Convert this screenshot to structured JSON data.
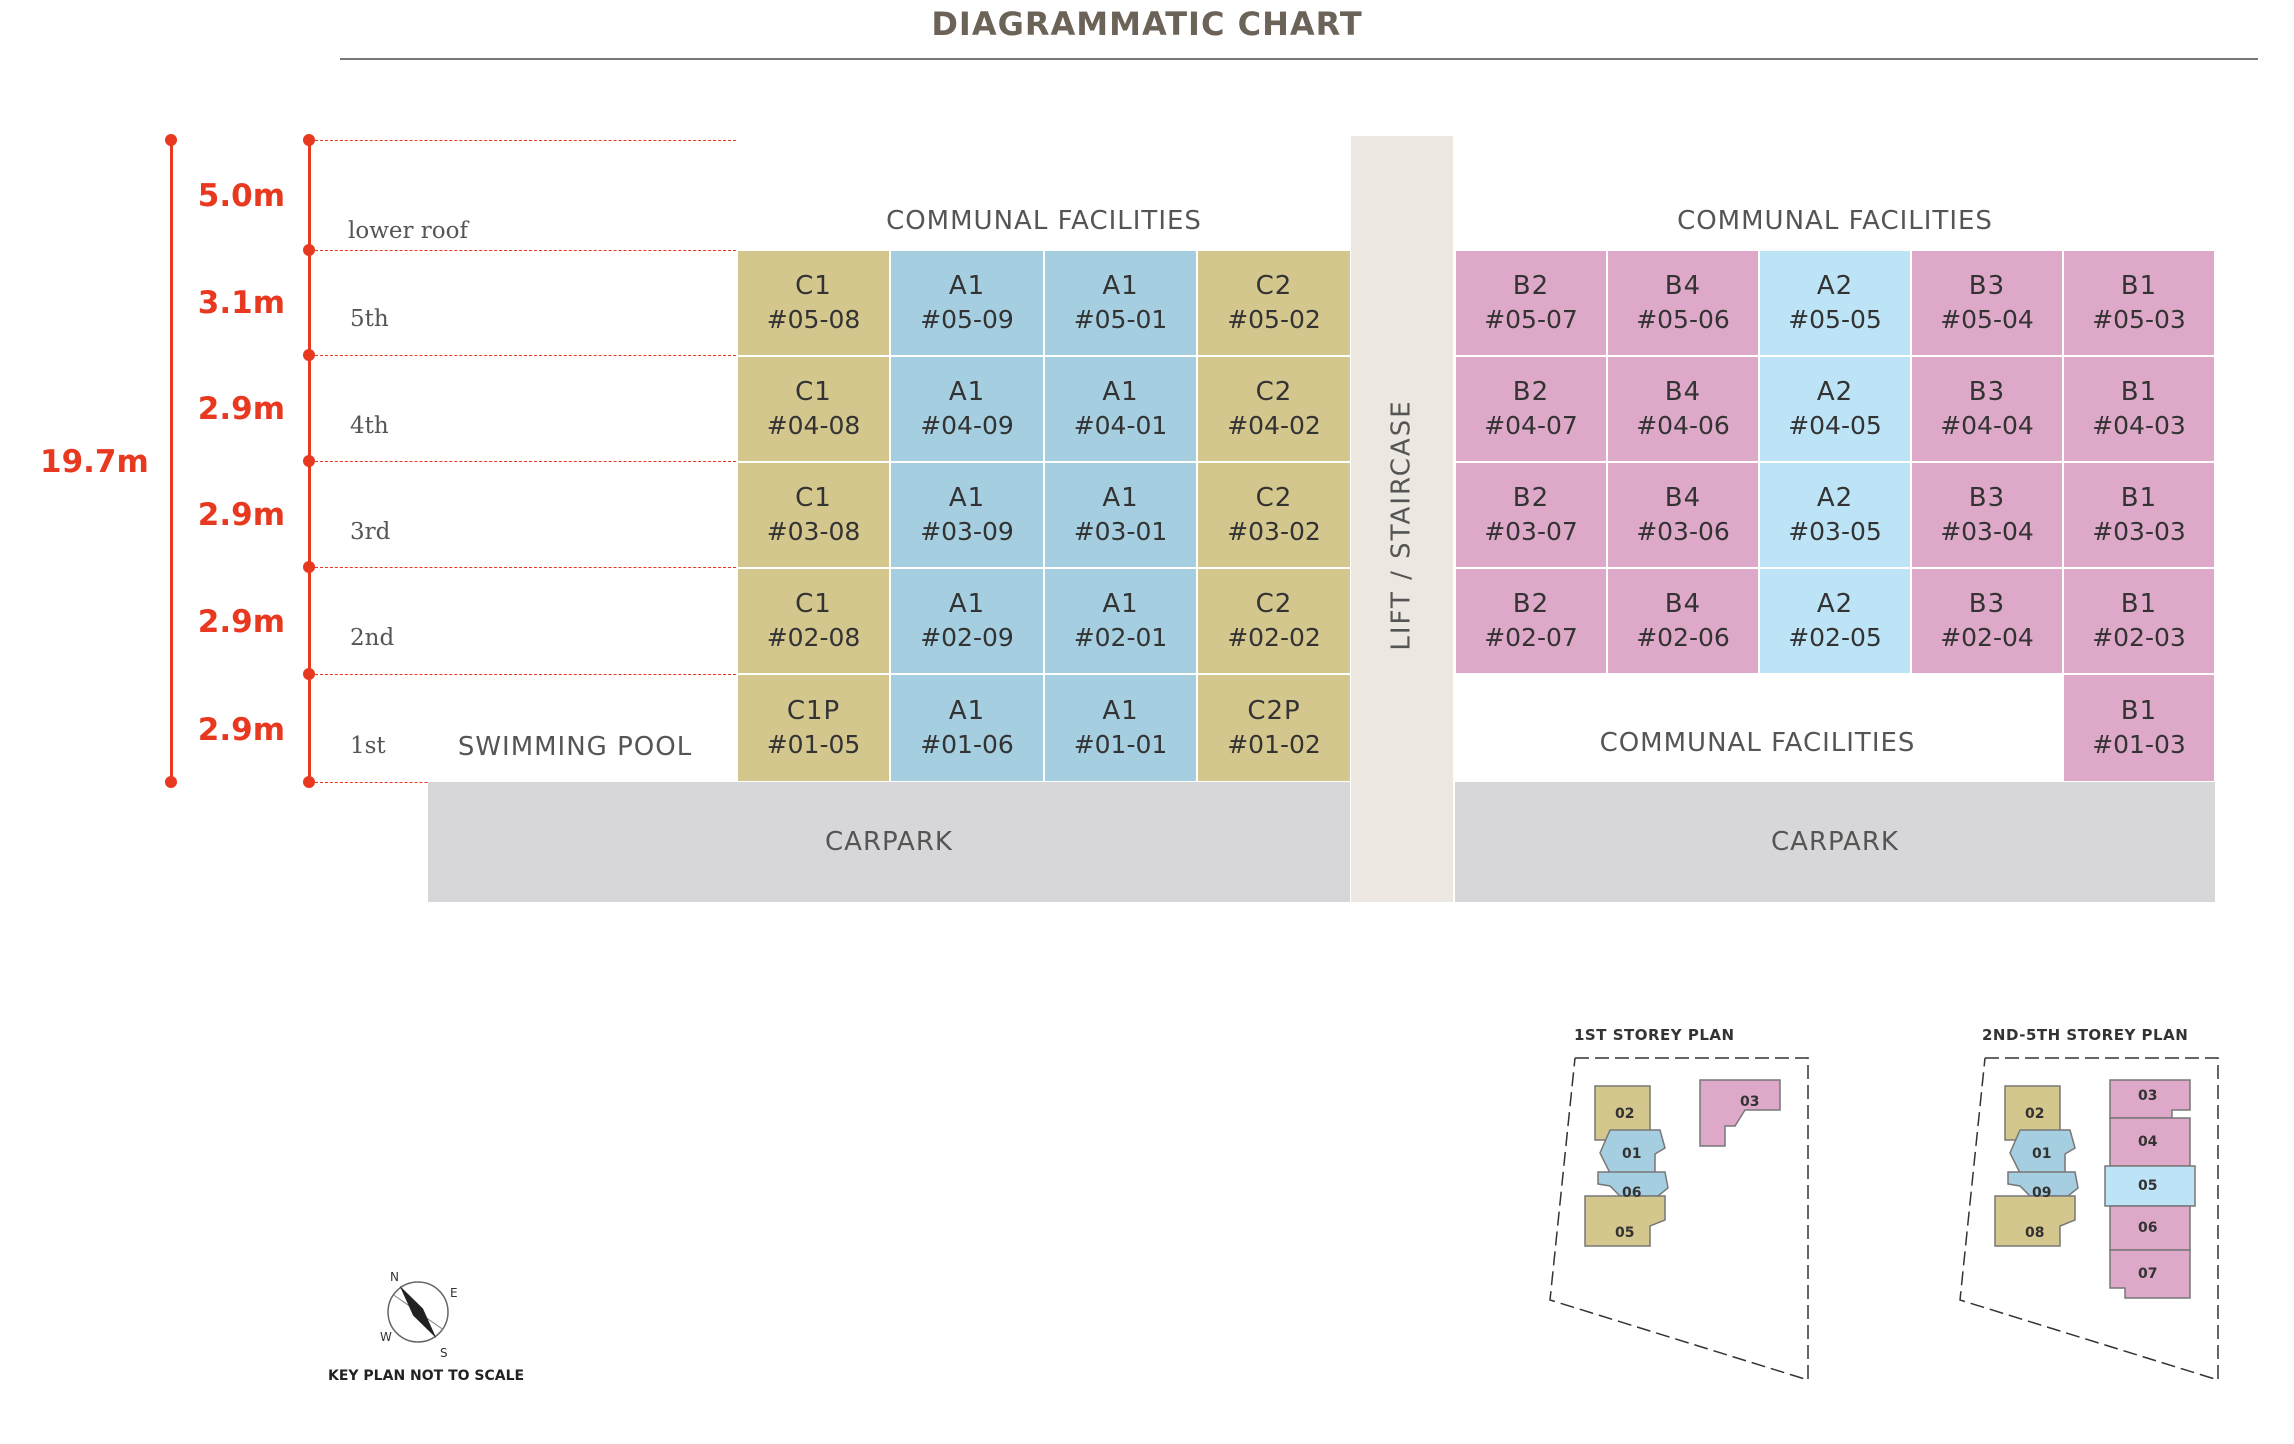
{
  "title": "DIAGRAMMATIC CHART",
  "dimensions": {
    "total": "19.7m",
    "segments": [
      "5.0m",
      "3.1m",
      "2.9m",
      "2.9m",
      "2.9m",
      "2.9m"
    ]
  },
  "floors": [
    "lower roof",
    "5th",
    "4th",
    "3rd",
    "2nd",
    "1st"
  ],
  "labels": {
    "communal_left": "COMMUNAL FACILITIES",
    "communal_right": "COMMUNAL FACILITIES",
    "communal_first": "COMMUNAL FACILITIES",
    "swimming_pool": "SWIMMING POOL",
    "carpark_left": "CARPARK",
    "carpark_right": "CARPARK",
    "lift": "LIFT / STAIRCASE"
  },
  "colors": {
    "C": "#d4c78e",
    "A1": "#a5cfe0",
    "A2": "#bde4f6",
    "B": "#dea9c8",
    "accent": "#e8381f"
  },
  "units": {
    "row5": [
      {
        "type": "C1",
        "no": "#05-08"
      },
      {
        "type": "A1",
        "no": "#05-09"
      },
      {
        "type": "A1",
        "no": "#05-01"
      },
      {
        "type": "C2",
        "no": "#05-02"
      },
      {
        "type": "B2",
        "no": "#05-07"
      },
      {
        "type": "B4",
        "no": "#05-06"
      },
      {
        "type": "A2",
        "no": "#05-05"
      },
      {
        "type": "B3",
        "no": "#05-04"
      },
      {
        "type": "B1",
        "no": "#05-03"
      }
    ],
    "row4": [
      {
        "type": "C1",
        "no": "#04-08"
      },
      {
        "type": "A1",
        "no": "#04-09"
      },
      {
        "type": "A1",
        "no": "#04-01"
      },
      {
        "type": "C2",
        "no": "#04-02"
      },
      {
        "type": "B2",
        "no": "#04-07"
      },
      {
        "type": "B4",
        "no": "#04-06"
      },
      {
        "type": "A2",
        "no": "#04-05"
      },
      {
        "type": "B3",
        "no": "#04-04"
      },
      {
        "type": "B1",
        "no": "#04-03"
      }
    ],
    "row3": [
      {
        "type": "C1",
        "no": "#03-08"
      },
      {
        "type": "A1",
        "no": "#03-09"
      },
      {
        "type": "A1",
        "no": "#03-01"
      },
      {
        "type": "C2",
        "no": "#03-02"
      },
      {
        "type": "B2",
        "no": "#03-07"
      },
      {
        "type": "B4",
        "no": "#03-06"
      },
      {
        "type": "A2",
        "no": "#03-05"
      },
      {
        "type": "B3",
        "no": "#03-04"
      },
      {
        "type": "B1",
        "no": "#03-03"
      }
    ],
    "row2": [
      {
        "type": "C1",
        "no": "#02-08"
      },
      {
        "type": "A1",
        "no": "#02-09"
      },
      {
        "type": "A1",
        "no": "#02-01"
      },
      {
        "type": "C2",
        "no": "#02-02"
      },
      {
        "type": "B2",
        "no": "#02-07"
      },
      {
        "type": "B4",
        "no": "#02-06"
      },
      {
        "type": "A2",
        "no": "#02-05"
      },
      {
        "type": "B3",
        "no": "#02-04"
      },
      {
        "type": "B1",
        "no": "#02-03"
      }
    ],
    "row1": [
      {
        "type": "C1P",
        "no": "#01-05"
      },
      {
        "type": "A1",
        "no": "#01-06"
      },
      {
        "type": "A1",
        "no": "#01-01"
      },
      {
        "type": "C2P",
        "no": "#01-02"
      },
      {
        "type": "B1",
        "no": "#01-03"
      }
    ]
  },
  "keyplan": {
    "first_title": "1ST STOREY PLAN",
    "upper_title": "2ND-5TH STOREY PLAN",
    "first_units": [
      "02",
      "01",
      "06",
      "05",
      "03"
    ],
    "upper_units": [
      "02",
      "01",
      "09",
      "08",
      "03",
      "04",
      "05",
      "06",
      "07"
    ],
    "compass": [
      "N",
      "E",
      "W",
      "S"
    ],
    "note": "KEY PLAN NOT TO SCALE"
  }
}
